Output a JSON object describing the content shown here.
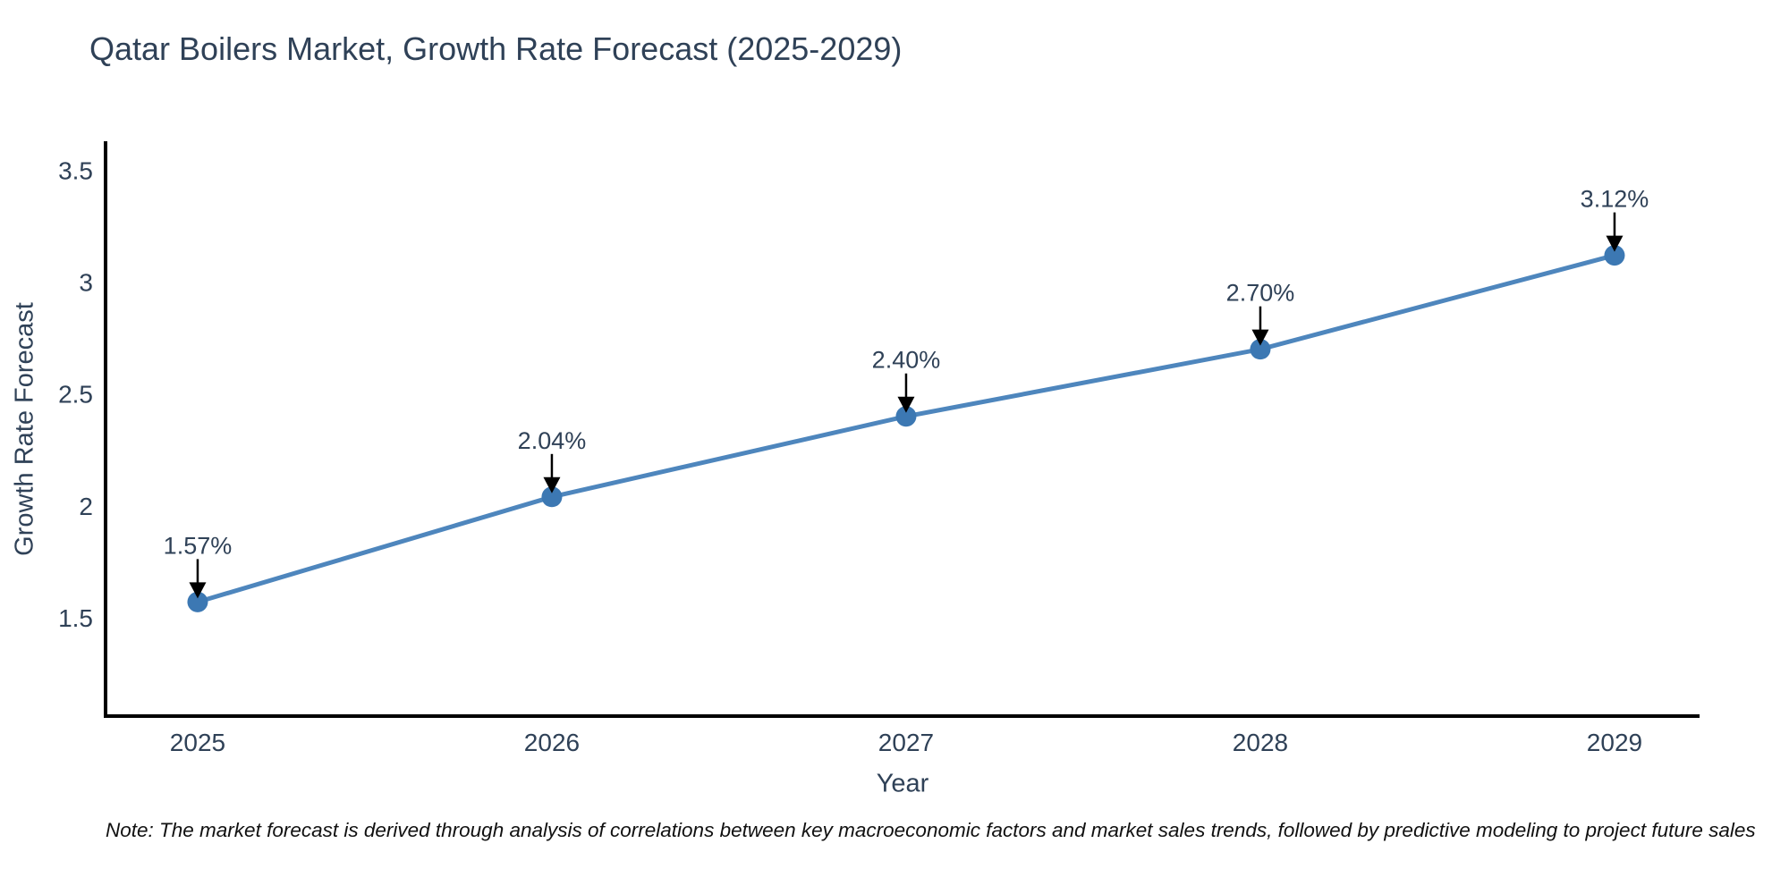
{
  "title": "Qatar Boilers Market, Growth Rate Forecast (2025-2029)",
  "note": "Note: The market forecast is derived through analysis of correlations between key macroeconomic factors and market sales trends, followed by predictive modeling to project future sales",
  "chart_data": {
    "type": "line",
    "title": "Qatar Boilers Market, Growth Rate Forecast (2025-2029)",
    "xlabel": "Year",
    "ylabel": "Growth Rate Forecast",
    "x": [
      2025,
      2026,
      2027,
      2028,
      2029
    ],
    "xtick_labels": [
      "2025",
      "2026",
      "2027",
      "2028",
      "2029"
    ],
    "values": [
      1.57,
      2.04,
      2.4,
      2.7,
      3.12
    ],
    "point_labels": [
      "1.57%",
      "2.04%",
      "2.40%",
      "2.70%",
      "3.12%"
    ],
    "yticks": [
      1.5,
      2,
      2.5,
      3,
      3.5
    ],
    "ytick_labels": [
      "1.5",
      "2",
      "2.5",
      "3",
      "3.5"
    ],
    "xlim": [
      2024.74,
      2029.24
    ],
    "ylim": [
      1.06,
      3.63
    ],
    "grid": false,
    "legend": false,
    "colors": {
      "line": "#4e86bd",
      "marker": "#3c78b3",
      "axis": "#000000",
      "tick_text": "#2f4157",
      "annotation_text": "#2f4157",
      "arrow": "#000000"
    }
  }
}
